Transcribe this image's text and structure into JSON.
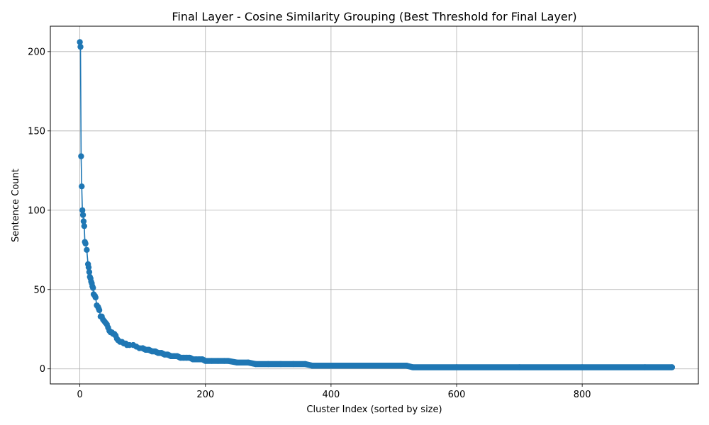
{
  "chart_data": {
    "type": "line",
    "title": "Final Layer - Cosine Similarity Grouping (Best Threshold for Final Layer)",
    "xlabel": "Cluster Index (sorted by size)",
    "ylabel": "Sentence Count",
    "xlim": [
      -47,
      985
    ],
    "ylim": [
      -9.5,
      216
    ],
    "xticks": [
      0,
      200,
      400,
      600,
      800
    ],
    "yticks": [
      0,
      50,
      100,
      150,
      200
    ],
    "grid": true,
    "marker": "circle",
    "color": "#1f77b4",
    "series": [
      {
        "x": [
          0,
          1,
          2,
          3,
          4,
          5,
          6,
          7,
          8,
          9,
          11,
          13,
          14,
          15,
          16,
          17,
          18,
          19,
          20,
          21,
          22,
          24,
          25,
          27,
          29,
          30,
          31,
          33,
          35,
          37,
          39,
          41,
          43,
          45,
          47,
          49,
          51,
          53,
          55,
          57,
          59,
          61,
          64,
          67,
          70,
          73,
          75,
          79,
          85,
          90,
          95,
          100,
          105,
          110,
          115,
          120,
          125,
          130,
          135,
          140,
          145,
          150,
          155,
          160,
          165,
          170,
          175,
          180,
          185,
          190,
          195,
          200,
          210,
          220,
          230,
          236,
          250,
          268,
          280,
          300,
          320,
          340,
          359,
          370,
          400,
          450,
          500,
          520,
          530,
          600,
          700,
          800,
          900,
          943
        ],
        "y": [
          206,
          203,
          134,
          115,
          100,
          97,
          93,
          90,
          80,
          79,
          75,
          66,
          64,
          61,
          58,
          57,
          55,
          54,
          52,
          51,
          47,
          46,
          45,
          40,
          39,
          38,
          37,
          33,
          33,
          31,
          30,
          29,
          28,
          26,
          24,
          23,
          23,
          22,
          22,
          21,
          19,
          18,
          17,
          17,
          16,
          16,
          15,
          15,
          15,
          14,
          13,
          13,
          12,
          12,
          11,
          11,
          10,
          10,
          9,
          9,
          8,
          8,
          8,
          7,
          7,
          7,
          7,
          6,
          6,
          6,
          6,
          5,
          5,
          5,
          5,
          5,
          4,
          4,
          3,
          3,
          3,
          3,
          3,
          2,
          2,
          2,
          2,
          2,
          1,
          1,
          1,
          1,
          1,
          1
        ]
      }
    ]
  }
}
